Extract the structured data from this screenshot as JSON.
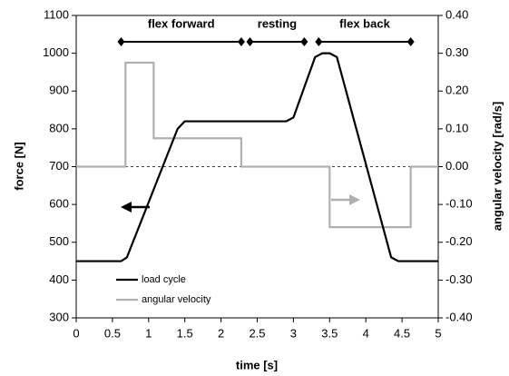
{
  "chart_data": {
    "type": "line",
    "x_label": "time [s]",
    "y_label": "force [N]",
    "y2_label": "angular velocity [rad/s]",
    "xlim": [
      0,
      5
    ],
    "xticks": [
      0,
      0.5,
      1,
      1.5,
      2,
      2.5,
      3,
      3.5,
      4,
      4.5,
      5
    ],
    "ylim": [
      300,
      1100
    ],
    "yticks": [
      300,
      400,
      500,
      600,
      700,
      800,
      900,
      1000,
      1100
    ],
    "y2lim": [
      -0.4,
      0.4
    ],
    "y2ticks": [
      {
        "value": -0.4,
        "label": "-0.40"
      },
      {
        "value": -0.3,
        "label": "-0.30"
      },
      {
        "value": -0.2,
        "label": "-0.20"
      },
      {
        "value": -0.1,
        "label": "-0.10"
      },
      {
        "value": 0,
        "label": "0.00"
      },
      {
        "value": 0.1,
        "label": "0.10"
      },
      {
        "value": 0.2,
        "label": "0.20"
      },
      {
        "value": 0.3,
        "label": "0.30"
      },
      {
        "value": 0.4,
        "label": "0.40"
      }
    ],
    "legend": "lower left",
    "series": [
      {
        "name": "load cycle",
        "color": "#000000",
        "x": [
          0,
          0.62,
          0.7,
          1.4,
          1.5,
          2.9,
          3.0,
          3.3,
          3.4,
          3.5,
          3.6,
          4.35,
          4.45,
          5
        ],
        "values": [
          450,
          450,
          460,
          800,
          820,
          820,
          830,
          990,
          1000,
          1000,
          990,
          460,
          450,
          450
        ]
      },
      {
        "name": "angular velocity",
        "color": "#b0b0b0",
        "axis": "y2",
        "x": [
          0,
          0.68,
          0.68,
          1.07,
          1.07,
          2.28,
          2.28,
          3.5,
          3.5,
          4.62,
          4.62,
          5
        ],
        "values": [
          0,
          0,
          0.275,
          0.275,
          0.075,
          0.075,
          0,
          0,
          -0.16,
          -0.16,
          0,
          0
        ]
      }
    ],
    "phases": [
      {
        "label": "flex forward",
        "start": 0.62,
        "end": 2.28
      },
      {
        "label": "resting",
        "start": 2.4,
        "end": 3.15
      },
      {
        "label": "flex back",
        "start": 3.35,
        "end": 4.62
      }
    ]
  }
}
